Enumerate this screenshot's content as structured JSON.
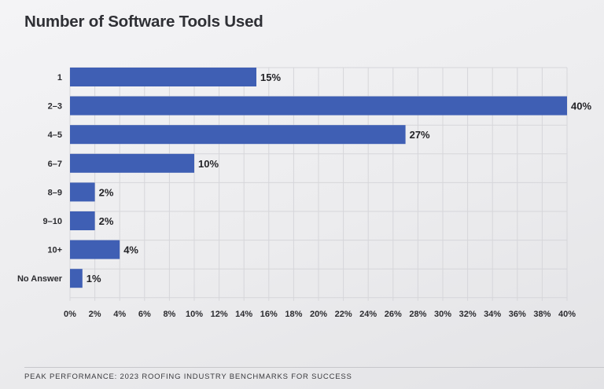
{
  "chart_data": {
    "type": "bar",
    "orientation": "horizontal",
    "title": "Number of Software Tools Used",
    "categories": [
      "1",
      "2–3",
      "4–5",
      "6–7",
      "8–9",
      "9–10",
      "10+",
      "No Answer"
    ],
    "values": [
      15,
      40,
      27,
      10,
      2,
      2,
      4,
      1
    ],
    "value_labels": [
      "15%",
      "40%",
      "27%",
      "10%",
      "2%",
      "2%",
      "4%",
      "1%"
    ],
    "xlim": [
      0,
      40
    ],
    "x_ticks": [
      "0%",
      "2%",
      "4%",
      "6%",
      "8%",
      "10%",
      "12%",
      "14%",
      "16%",
      "18%",
      "20%",
      "22%",
      "24%",
      "26%",
      "28%",
      "30%",
      "32%",
      "34%",
      "36%",
      "38%",
      "40%"
    ],
    "grid": true,
    "bar_color": "#3f5fb4"
  },
  "footer": "Peak Performance: 2023 Roofing Industry Benchmarks for Success"
}
